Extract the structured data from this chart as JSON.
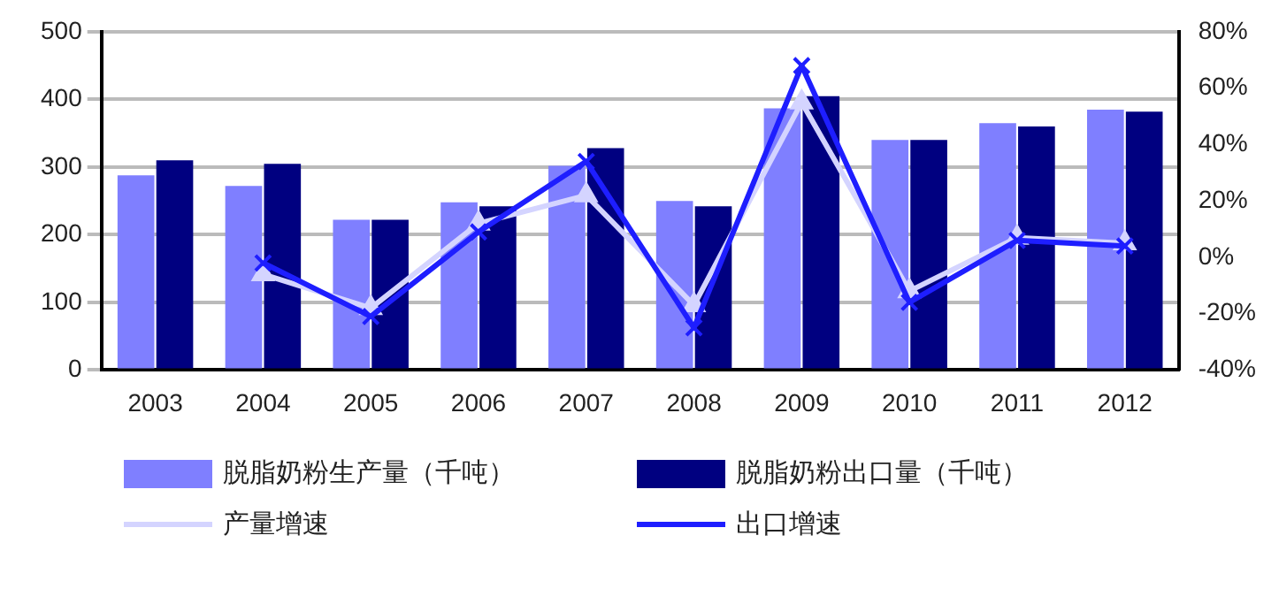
{
  "chart_data": {
    "type": "bar",
    "categories": [
      "2003",
      "2004",
      "2005",
      "2006",
      "2007",
      "2008",
      "2009",
      "2010",
      "2011",
      "2012"
    ],
    "series": [
      {
        "name": "脱脂奶粉生产量（千吨）",
        "color": "#7f7fff",
        "values": [
          288,
          272,
          222,
          248,
          302,
          250,
          387,
          340,
          365,
          385
        ]
      },
      {
        "name": "脱脂奶粉出口量（千吨）",
        "color": "#000080",
        "values": [
          310,
          305,
          222,
          242,
          328,
          242,
          405,
          340,
          360,
          382
        ]
      },
      {
        "name": "产量增速",
        "type": "line",
        "axis": "y2",
        "color": "#d4d4ff",
        "marker": "triangle",
        "values": [
          null,
          -6,
          -18,
          12,
          22,
          -17,
          55,
          -12,
          7,
          5
        ]
      },
      {
        "name": "出口增速",
        "type": "line",
        "axis": "y2",
        "color": "#1e1eff",
        "marker": "cross",
        "values": [
          null,
          -2,
          -21,
          9,
          34,
          -25,
          68,
          -16,
          6,
          4
        ]
      }
    ],
    "ylim": [
      0,
      500
    ],
    "yticks": [
      0,
      100,
      200,
      300,
      400,
      500
    ],
    "y2lim": [
      -40,
      80
    ],
    "y2ticks": [
      {
        "value": -40,
        "label": "-40%"
      },
      {
        "value": -20,
        "label": "-20%"
      },
      {
        "value": 0,
        "label": "0%"
      },
      {
        "value": 20,
        "label": "20%"
      },
      {
        "value": 40,
        "label": "40%"
      },
      {
        "value": 60,
        "label": "60%"
      },
      {
        "value": 80,
        "label": "80%"
      }
    ],
    "grid": "y",
    "legend": "bottom"
  }
}
